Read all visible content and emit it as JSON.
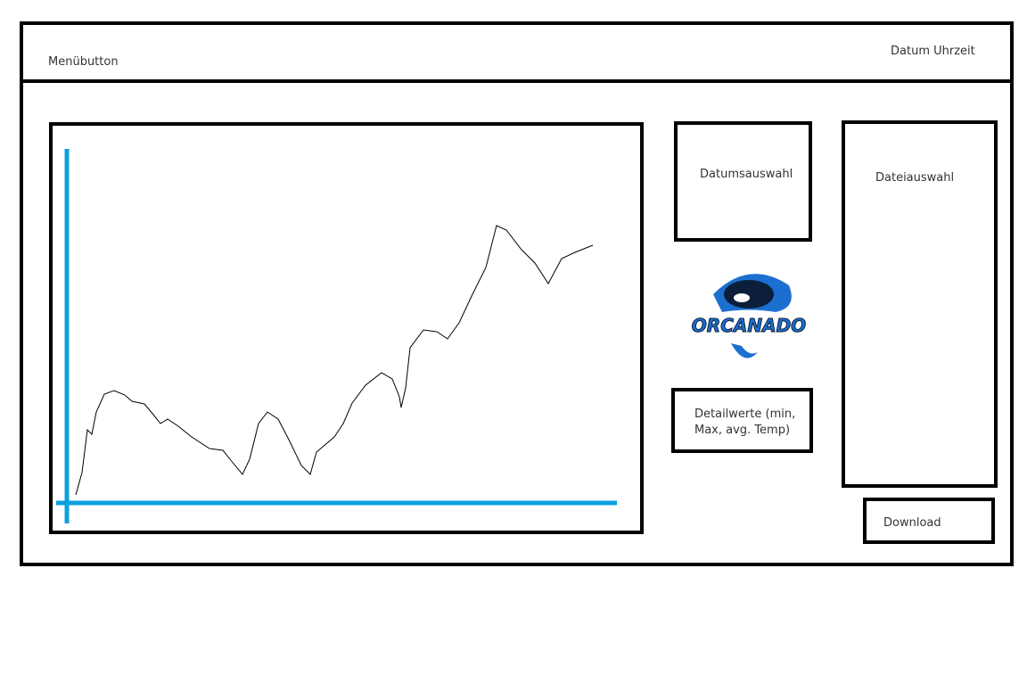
{
  "header": {
    "menu_button": "Menübutton",
    "datetime": "Datum Uhrzeit"
  },
  "date_picker": {
    "label": "Datumsauswahl"
  },
  "file_picker": {
    "label": "Dateiauswahl"
  },
  "logo": {
    "text": "ORCANADO"
  },
  "details": {
    "lines": [
      "Detailwerte (min,",
      "Max, avg. Temp)"
    ]
  },
  "download": {
    "label": "Download"
  }
}
